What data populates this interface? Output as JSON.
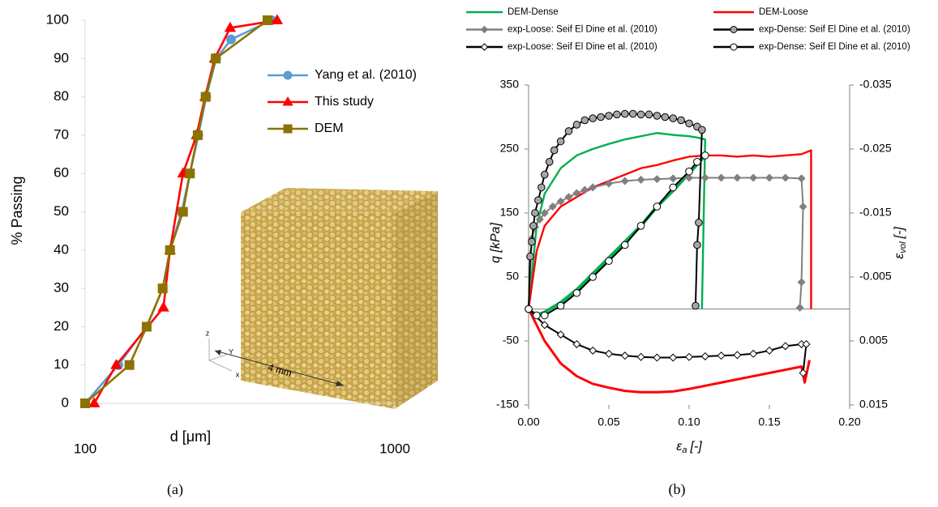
{
  "chart_data": [
    {
      "type": "line",
      "caption": "(a)",
      "x_label": "d [μm]",
      "y_label": "% Passing",
      "xscale": "log",
      "xlim": [
        100,
        1000
      ],
      "xticks": [
        100,
        1000
      ],
      "ylim": [
        0,
        100
      ],
      "yticks": [
        0,
        10,
        20,
        30,
        40,
        50,
        60,
        70,
        80,
        90,
        100
      ],
      "annotations": [
        "4 mm",
        "z",
        "Y",
        "x"
      ],
      "series": [
        {
          "name": "Yang et al. (2010)",
          "color": "#5b9bd5",
          "marker": "circle",
          "marker_fill": "#5b9bd5",
          "x": [
            100,
            128,
            158,
            178,
            188,
            205,
            218,
            232,
            246,
            265,
            296,
            400
          ],
          "values": [
            0,
            10,
            20,
            30,
            40,
            50,
            60,
            70,
            80,
            90,
            95,
            100
          ]
        },
        {
          "name": "This study",
          "color": "#ff0000",
          "marker": "triangle",
          "marker_fill": "#ff0000",
          "x": [
            107,
            126,
            179,
            188,
            207,
            229,
            244,
            262,
            294,
            417
          ],
          "values": [
            0,
            10,
            25,
            40,
            60,
            70,
            80,
            90,
            98,
            100
          ]
        },
        {
          "name": "DEM",
          "color": "#8c7300",
          "marker": "square",
          "marker_fill": "#8c7300",
          "x": [
            100,
            139,
            158,
            178,
            188,
            207,
            218,
            231,
            245,
            264,
            388
          ],
          "values": [
            0,
            10,
            20,
            30,
            40,
            50,
            60,
            70,
            80,
            90,
            100
          ]
        }
      ]
    },
    {
      "type": "line",
      "caption": "(b)",
      "x_label": {
        "symbol": "ε",
        "subscript": "a",
        "unit": "[-]"
      },
      "y_label": "q [kPa]",
      "y2_label": {
        "symbol": "ε",
        "subscript": "vol",
        "unit": "[-]"
      },
      "xlim": [
        0,
        0.2
      ],
      "xticks": [
        {
          "value": 0,
          "label": "0.00"
        },
        0.05,
        {
          "value": 0.1,
          "label": "0.10"
        },
        0.15,
        {
          "value": 0.2,
          "label": "0.20"
        }
      ],
      "ylim": [
        -150,
        350
      ],
      "yticks": [
        -150,
        -50,
        50,
        150,
        250,
        350
      ],
      "y2lim": [
        0.015,
        -0.035
      ],
      "y2ticks": [
        0.015,
        0.005,
        -0.005,
        -0.015,
        -0.025,
        -0.035
      ],
      "series": [
        {
          "name": "DEM-Dense",
          "color": "#00b050",
          "x": [
            0,
            0.005,
            0.01,
            0.02,
            0.03,
            0.04,
            0.05,
            0.06,
            0.07,
            0.08,
            0.09,
            0.1,
            0.105,
            0.11,
            0.108
          ],
          "values": [
            0,
            130,
            180,
            220,
            240,
            250,
            258,
            265,
            270,
            275,
            272,
            270,
            268,
            265,
            0
          ],
          "vol_x": [
            0,
            0.005,
            0.01,
            0.02,
            0.03,
            0.04,
            0.05,
            0.06,
            0.07,
            0.08,
            0.09,
            0.1,
            0.11
          ],
          "vol_values": [
            0,
            0.001,
            0.0005,
            -0.001,
            -0.003,
            -0.0055,
            -0.008,
            -0.0105,
            -0.013,
            -0.016,
            -0.0185,
            -0.0212,
            -0.024
          ]
        },
        {
          "name": "DEM-Loose",
          "color": "#ff0000",
          "x": [
            0,
            0.005,
            0.01,
            0.02,
            0.03,
            0.04,
            0.05,
            0.06,
            0.07,
            0.08,
            0.09,
            0.1,
            0.11,
            0.12,
            0.13,
            0.14,
            0.15,
            0.16,
            0.17,
            0.176,
            0.176
          ],
          "values": [
            0,
            90,
            130,
            160,
            175,
            190,
            200,
            210,
            220,
            225,
            232,
            238,
            240,
            240,
            238,
            240,
            238,
            240,
            242,
            248,
            0
          ],
          "vol_x": [
            0,
            0.01,
            0.02,
            0.03,
            0.04,
            0.05,
            0.06,
            0.07,
            0.08,
            0.09,
            0.1,
            0.11,
            0.12,
            0.13,
            0.14,
            0.15,
            0.16,
            0.17,
            0.172,
            0.175
          ],
          "vol_values": [
            0,
            0.005,
            0.0085,
            0.0105,
            0.0117,
            0.0123,
            0.0128,
            0.013,
            0.013,
            0.0129,
            0.0125,
            0.012,
            0.0115,
            0.011,
            0.0105,
            0.01,
            0.0095,
            0.009,
            0.0115,
            0.008
          ]
        },
        {
          "name": "exp-Loose: Seif El Dine et al. (2010)",
          "color": "#808080",
          "marker": "diamond",
          "marker_fill": "#808080",
          "x": [
            0,
            0.002,
            0.004,
            0.007,
            0.01,
            0.015,
            0.02,
            0.025,
            0.03,
            0.035,
            0.04,
            0.05,
            0.06,
            0.07,
            0.08,
            0.09,
            0.1,
            0.11,
            0.12,
            0.13,
            0.14,
            0.15,
            0.16,
            0.17,
            0.171,
            0.17,
            0.169
          ],
          "values": [
            0,
            110,
            128,
            140,
            150,
            160,
            168,
            175,
            181,
            186,
            190,
            196,
            200,
            202,
            203,
            204,
            205,
            205,
            205,
            205,
            205,
            205,
            205,
            204,
            160,
            42,
            2
          ]
        },
        {
          "name": "exp-Dense: Seif El Dine et al. (2010)",
          "color": "#000000",
          "marker": "circle",
          "marker_fill": "#a6a6a6",
          "x": [
            0,
            0.001,
            0.002,
            0.003,
            0.004,
            0.006,
            0.008,
            0.01,
            0.013,
            0.016,
            0.02,
            0.025,
            0.03,
            0.035,
            0.04,
            0.045,
            0.05,
            0.055,
            0.06,
            0.065,
            0.07,
            0.075,
            0.08,
            0.085,
            0.09,
            0.095,
            0.1,
            0.105,
            0.108,
            0.106,
            0.105,
            0.104
          ],
          "values": [
            0,
            82,
            105,
            130,
            150,
            170,
            190,
            210,
            230,
            248,
            262,
            278,
            288,
            295,
            298,
            300,
            302,
            304,
            305,
            305,
            304,
            304,
            302,
            300,
            298,
            295,
            290,
            285,
            280,
            135,
            100,
            5
          ]
        },
        {
          "name": "exp-Loose: Seif El Dine et al. (2010)",
          "color": "#000000",
          "marker": "diamond",
          "marker_fill": "#ffffff",
          "axis": "y2",
          "x": [
            0,
            0.01,
            0.02,
            0.03,
            0.04,
            0.05,
            0.06,
            0.07,
            0.08,
            0.09,
            0.1,
            0.11,
            0.12,
            0.13,
            0.14,
            0.15,
            0.16,
            0.17,
            0.173,
            0.171
          ],
          "values": [
            0,
            0.0025,
            0.004,
            0.0055,
            0.0065,
            0.007,
            0.0073,
            0.0075,
            0.0076,
            0.0076,
            0.0075,
            0.0074,
            0.0073,
            0.0072,
            0.007,
            0.0065,
            0.0058,
            0.0055,
            0.0055,
            0.01
          ]
        },
        {
          "name": "exp-Dense: Seif El Dine et al. (2010)",
          "color": "#000000",
          "marker": "circle",
          "marker_fill": "#ffffff",
          "axis": "y2",
          "x": [
            0,
            0.005,
            0.01,
            0.02,
            0.03,
            0.04,
            0.05,
            0.06,
            0.07,
            0.08,
            0.09,
            0.1,
            0.105,
            0.11
          ],
          "values": [
            0,
            0.001,
            0.001,
            -0.0005,
            -0.0025,
            -0.005,
            -0.0075,
            -0.01,
            -0.013,
            -0.016,
            -0.019,
            -0.0215,
            -0.023,
            -0.024
          ]
        }
      ]
    }
  ]
}
